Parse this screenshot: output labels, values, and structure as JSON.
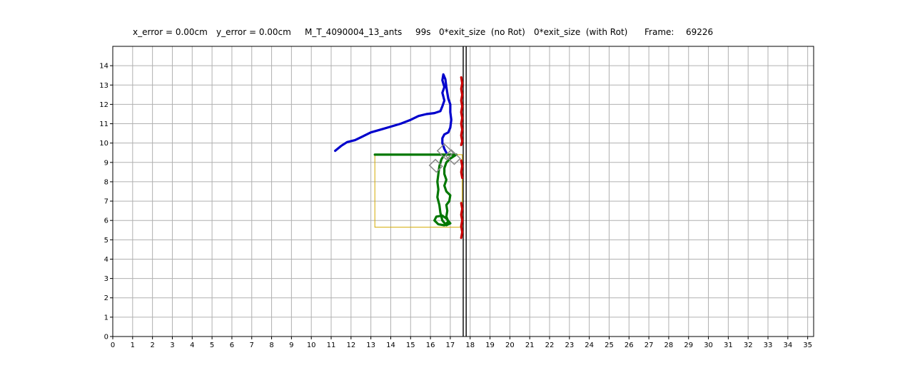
{
  "header": {
    "x_error": "x_error = 0.00cm",
    "y_error": "y_error = 0.00cm",
    "experiment": "M_T_4090004_13_ants",
    "time": "99s",
    "exit_no_rot": "0*exit_size  (no Rot)",
    "exit_with_rot": "0*exit_size  (with Rot)",
    "frame_label": "Frame:",
    "frame_value": "69226"
  },
  "colors": {
    "trajectory_a": "#0000cc",
    "trajectory_b": "#007700",
    "trajectory_c": "#cc0000",
    "bounding_box": "#d4aa00",
    "load_shape": "#888888",
    "wall": "#000000",
    "grid": "#b0b0b0"
  },
  "chart_data": {
    "type": "line",
    "title": "",
    "xlabel": "",
    "ylabel": "",
    "xlim": [
      0,
      35.3
    ],
    "ylim": [
      0,
      15
    ],
    "grid": true,
    "x_ticks": [
      "0",
      "1",
      "2",
      "3",
      "4",
      "5",
      "6",
      "7",
      "8",
      "9",
      "10",
      "11",
      "12",
      "13",
      "14",
      "15",
      "16",
      "17",
      "18",
      "19",
      "20",
      "21",
      "22",
      "23",
      "24",
      "25",
      "26",
      "27",
      "28",
      "29",
      "30",
      "31",
      "32",
      "33",
      "34",
      "35"
    ],
    "y_ticks": [
      "0",
      "1",
      "2",
      "3",
      "4",
      "5",
      "6",
      "7",
      "8",
      "9",
      "10",
      "11",
      "12",
      "13",
      "14"
    ],
    "walls_x": [
      17.65,
      17.8
    ],
    "series": [
      {
        "color_key": "trajectory_a",
        "points": [
          [
            11.2,
            9.6
          ],
          [
            11.5,
            9.85
          ],
          [
            11.8,
            10.05
          ],
          [
            12.2,
            10.15
          ],
          [
            12.6,
            10.35
          ],
          [
            13.0,
            10.55
          ],
          [
            13.5,
            10.7
          ],
          [
            14.0,
            10.85
          ],
          [
            14.5,
            11.0
          ],
          [
            15.0,
            11.2
          ],
          [
            15.4,
            11.4
          ],
          [
            15.8,
            11.5
          ],
          [
            16.2,
            11.55
          ],
          [
            16.5,
            11.65
          ],
          [
            16.6,
            11.9
          ],
          [
            16.7,
            12.2
          ],
          [
            16.6,
            12.6
          ],
          [
            16.7,
            12.9
          ],
          [
            16.6,
            13.25
          ],
          [
            16.65,
            13.55
          ],
          [
            16.75,
            13.3
          ],
          [
            16.8,
            12.9
          ],
          [
            16.85,
            12.6
          ],
          [
            16.9,
            12.3
          ],
          [
            17.0,
            12.0
          ],
          [
            17.0,
            11.6
          ],
          [
            17.05,
            11.2
          ],
          [
            17.0,
            10.8
          ],
          [
            16.9,
            10.55
          ],
          [
            16.7,
            10.45
          ],
          [
            16.6,
            10.25
          ],
          [
            16.6,
            10.0
          ],
          [
            16.7,
            9.7
          ],
          [
            16.8,
            9.5
          ]
        ]
      },
      {
        "color_key": "trajectory_b",
        "points": [
          [
            13.2,
            9.4
          ],
          [
            13.8,
            9.4
          ],
          [
            14.5,
            9.4
          ],
          [
            15.2,
            9.4
          ],
          [
            16.0,
            9.4
          ],
          [
            16.8,
            9.4
          ],
          [
            17.3,
            9.4
          ],
          [
            17.0,
            9.2
          ],
          [
            16.8,
            9.0
          ],
          [
            16.7,
            8.7
          ],
          [
            16.7,
            8.4
          ],
          [
            16.8,
            8.1
          ],
          [
            16.7,
            7.8
          ],
          [
            16.8,
            7.5
          ],
          [
            17.0,
            7.3
          ],
          [
            16.95,
            7.0
          ],
          [
            16.8,
            6.8
          ],
          [
            16.85,
            6.5
          ],
          [
            16.8,
            6.2
          ],
          [
            16.9,
            5.95
          ],
          [
            16.7,
            5.75
          ],
          [
            16.4,
            5.8
          ],
          [
            16.2,
            6.0
          ],
          [
            16.3,
            6.2
          ],
          [
            16.6,
            6.25
          ],
          [
            16.8,
            6.1
          ],
          [
            17.0,
            5.85
          ],
          [
            16.8,
            5.75
          ],
          [
            16.6,
            6.0
          ],
          [
            16.5,
            6.4
          ],
          [
            16.45,
            6.8
          ],
          [
            16.35,
            7.2
          ],
          [
            16.4,
            7.6
          ],
          [
            16.35,
            8.0
          ],
          [
            16.4,
            8.4
          ],
          [
            16.45,
            8.8
          ],
          [
            16.55,
            9.15
          ],
          [
            16.7,
            9.4
          ]
        ]
      },
      {
        "color_key": "trajectory_c",
        "points": [
          [
            17.55,
            13.4
          ],
          [
            17.6,
            13.1
          ],
          [
            17.55,
            12.8
          ],
          [
            17.6,
            12.5
          ],
          [
            17.55,
            12.2
          ],
          [
            17.6,
            11.9
          ],
          [
            17.55,
            11.6
          ],
          [
            17.6,
            11.3
          ],
          [
            17.55,
            11.0
          ],
          [
            17.6,
            10.7
          ],
          [
            17.55,
            10.4
          ],
          [
            17.6,
            10.1
          ],
          [
            17.55,
            9.9
          ]
        ]
      },
      {
        "color_key": "trajectory_c",
        "points": [
          [
            17.55,
            9.1
          ],
          [
            17.6,
            8.8
          ],
          [
            17.55,
            8.5
          ],
          [
            17.6,
            8.2
          ]
        ]
      },
      {
        "color_key": "trajectory_c",
        "points": [
          [
            17.55,
            6.9
          ],
          [
            17.6,
            6.6
          ],
          [
            17.55,
            6.3
          ],
          [
            17.6,
            6.0
          ],
          [
            17.55,
            5.7
          ],
          [
            17.6,
            5.4
          ],
          [
            17.55,
            5.1
          ]
        ]
      }
    ],
    "rectangle": {
      "x0": 13.2,
      "y0": 5.65,
      "x1": 17.6,
      "y1": 9.4
    },
    "load_outline": [
      [
        15.95,
        8.85
      ],
      [
        16.25,
        9.15
      ],
      [
        16.6,
        8.8
      ],
      [
        16.3,
        8.5
      ]
    ],
    "load_outline_2": [
      [
        16.35,
        9.6
      ],
      [
        16.7,
        9.95
      ],
      [
        17.15,
        9.5
      ],
      [
        16.8,
        9.15
      ]
    ],
    "load_outline_3": [
      [
        16.75,
        9.35
      ],
      [
        17.05,
        9.65
      ],
      [
        17.5,
        9.2
      ],
      [
        17.2,
        8.9
      ]
    ]
  }
}
